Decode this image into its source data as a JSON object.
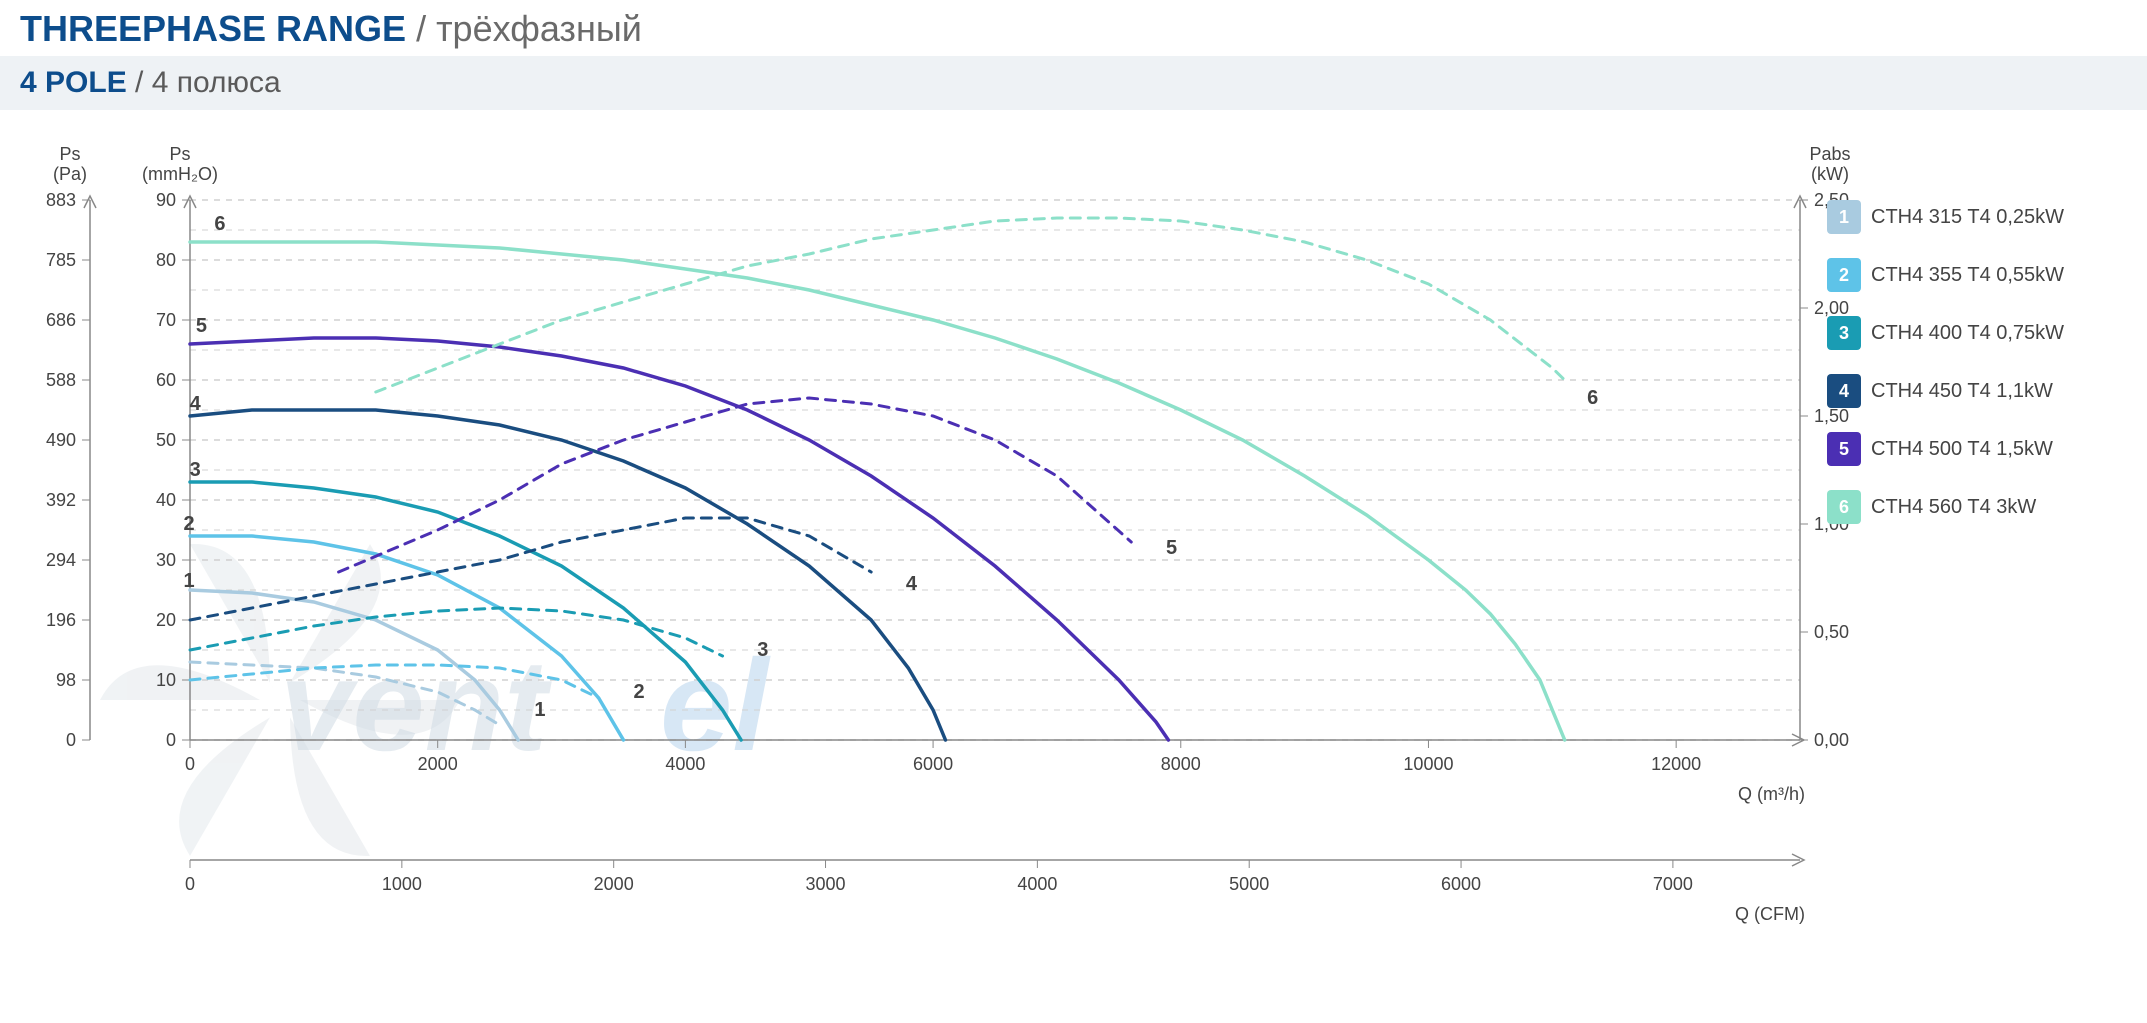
{
  "header": {
    "title_main": "THREEPHASE RANGE",
    "title_sub": " / трёхфазный",
    "subtitle_main": "4 POLE",
    "subtitle_sub": " / 4 полюса"
  },
  "chart": {
    "type": "line",
    "background_color": "#ffffff",
    "grid_color": "#d0d0d0",
    "axis_color": "#888888",
    "font_color": "#444444",
    "plot": {
      "x_domain": [
        0,
        13000
      ],
      "x_ticks": [
        0,
        2000,
        4000,
        6000,
        8000,
        10000,
        12000
      ],
      "x_label": "Q (m³/h)",
      "x2_label": "Q (CFM)",
      "x2_domain": [
        0,
        7600
      ],
      "x2_ticks": [
        0,
        1000,
        2000,
        3000,
        4000,
        5000,
        6000,
        7000
      ],
      "y1_left_pa": {
        "label": "Ps\n(Pa)",
        "ticks": [
          0,
          98,
          196,
          294,
          392,
          490,
          588,
          686,
          785,
          883
        ]
      },
      "y1_left_mm": {
        "label": "Ps\n(mmH₂O)",
        "ticks": [
          0,
          10,
          20,
          30,
          40,
          50,
          60,
          70,
          80,
          90
        ]
      },
      "y_right": {
        "label": "Pabs\n(kW)",
        "ticks": [
          "0,00",
          "0,50",
          "1,00",
          "1,50",
          "2,00",
          "2,50"
        ]
      }
    },
    "series": [
      {
        "id": "1",
        "label": "CTH4 315 T4 0,25kW",
        "color": "#a9cbe0",
        "solid": [
          [
            0,
            25
          ],
          [
            500,
            24.5
          ],
          [
            1000,
            23
          ],
          [
            1500,
            20
          ],
          [
            2000,
            15
          ],
          [
            2300,
            10
          ],
          [
            2500,
            5
          ],
          [
            2650,
            0
          ]
        ],
        "dashed": [
          [
            0,
            13
          ],
          [
            500,
            12.5
          ],
          [
            1000,
            12
          ],
          [
            1500,
            10.5
          ],
          [
            2000,
            8
          ],
          [
            2300,
            5
          ],
          [
            2500,
            2.5
          ]
        ],
        "label_solid_xy": [
          150,
          25.5
        ],
        "label_dashed_xy": [
          2700,
          5
        ]
      },
      {
        "id": "2",
        "label": "CTH4 355 T4 0,55kW",
        "color": "#5ec3e8",
        "solid": [
          [
            0,
            34
          ],
          [
            500,
            34
          ],
          [
            1000,
            33
          ],
          [
            1500,
            31
          ],
          [
            2000,
            27.5
          ],
          [
            2500,
            22
          ],
          [
            3000,
            14
          ],
          [
            3300,
            7
          ],
          [
            3500,
            0
          ]
        ],
        "dashed": [
          [
            0,
            10
          ],
          [
            500,
            11
          ],
          [
            1000,
            12
          ],
          [
            1500,
            12.5
          ],
          [
            2000,
            12.5
          ],
          [
            2500,
            12
          ],
          [
            3000,
            10
          ],
          [
            3300,
            7
          ]
        ],
        "label_solid_xy": [
          150,
          35
        ],
        "label_dashed_xy": [
          3500,
          8
        ]
      },
      {
        "id": "3",
        "label": "CTH4 400 T4 0,75kW",
        "color": "#1a9cb3",
        "solid": [
          [
            0,
            43
          ],
          [
            500,
            43
          ],
          [
            1000,
            42
          ],
          [
            1500,
            40.5
          ],
          [
            2000,
            38
          ],
          [
            2500,
            34
          ],
          [
            3000,
            29
          ],
          [
            3500,
            22
          ],
          [
            4000,
            13
          ],
          [
            4300,
            5
          ],
          [
            4450,
            0
          ]
        ],
        "dashed": [
          [
            0,
            15
          ],
          [
            500,
            17
          ],
          [
            1000,
            19
          ],
          [
            1500,
            20.5
          ],
          [
            2000,
            21.5
          ],
          [
            2500,
            22
          ],
          [
            3000,
            21.5
          ],
          [
            3500,
            20
          ],
          [
            4000,
            17
          ],
          [
            4300,
            14
          ]
        ],
        "label_solid_xy": [
          200,
          44
        ],
        "label_dashed_xy": [
          4500,
          15
        ]
      },
      {
        "id": "4",
        "label": "CTH4 450 T4 1,1kW",
        "color": "#1a4d80",
        "solid": [
          [
            0,
            54
          ],
          [
            500,
            55
          ],
          [
            1000,
            55
          ],
          [
            1500,
            55
          ],
          [
            2000,
            54
          ],
          [
            2500,
            52.5
          ],
          [
            3000,
            50
          ],
          [
            3500,
            46.5
          ],
          [
            4000,
            42
          ],
          [
            4500,
            36
          ],
          [
            5000,
            29
          ],
          [
            5500,
            20
          ],
          [
            5800,
            12
          ],
          [
            6000,
            5
          ],
          [
            6100,
            0
          ]
        ],
        "dashed": [
          [
            0,
            20
          ],
          [
            1000,
            24
          ],
          [
            2000,
            28
          ],
          [
            2500,
            30
          ],
          [
            3000,
            33
          ],
          [
            3500,
            35
          ],
          [
            4000,
            37
          ],
          [
            4500,
            37
          ],
          [
            5000,
            34
          ],
          [
            5500,
            28
          ]
        ],
        "label_solid_xy": [
          200,
          55
        ],
        "label_dashed_xy": [
          5700,
          26
        ]
      },
      {
        "id": "5",
        "label": "CTH4 500 T4 1,5kW",
        "color": "#4b2fb3",
        "solid": [
          [
            0,
            66
          ],
          [
            500,
            66.5
          ],
          [
            1000,
            67
          ],
          [
            1500,
            67
          ],
          [
            2000,
            66.5
          ],
          [
            2500,
            65.5
          ],
          [
            3000,
            64
          ],
          [
            3500,
            62
          ],
          [
            4000,
            59
          ],
          [
            4500,
            55
          ],
          [
            5000,
            50
          ],
          [
            5500,
            44
          ],
          [
            6000,
            37
          ],
          [
            6500,
            29
          ],
          [
            7000,
            20
          ],
          [
            7500,
            10
          ],
          [
            7800,
            3
          ],
          [
            7900,
            0
          ]
        ],
        "dashed": [
          [
            1200,
            28
          ],
          [
            2000,
            35
          ],
          [
            2500,
            40
          ],
          [
            3000,
            46
          ],
          [
            3500,
            50
          ],
          [
            4000,
            53
          ],
          [
            4500,
            56
          ],
          [
            5000,
            57
          ],
          [
            5500,
            56
          ],
          [
            6000,
            54
          ],
          [
            6500,
            50
          ],
          [
            7000,
            44
          ],
          [
            7600,
            33
          ]
        ],
        "label_solid_xy": [
          250,
          68
        ],
        "label_dashed_xy": [
          7800,
          32
        ]
      },
      {
        "id": "6",
        "label": "CTH4 560 T4 3kW",
        "color": "#8ce0c9",
        "solid": [
          [
            0,
            83
          ],
          [
            500,
            83
          ],
          [
            1000,
            83
          ],
          [
            1500,
            83
          ],
          [
            2000,
            82.5
          ],
          [
            2500,
            82
          ],
          [
            3000,
            81
          ],
          [
            3500,
            80
          ],
          [
            4000,
            78.5
          ],
          [
            4500,
            77
          ],
          [
            5000,
            75
          ],
          [
            5500,
            72.5
          ],
          [
            6000,
            70
          ],
          [
            6500,
            67
          ],
          [
            7000,
            63.5
          ],
          [
            7500,
            59.5
          ],
          [
            8000,
            55
          ],
          [
            8500,
            50
          ],
          [
            9000,
            44
          ],
          [
            9500,
            37.5
          ],
          [
            10000,
            30
          ],
          [
            10300,
            25
          ],
          [
            10500,
            21
          ],
          [
            10700,
            16
          ],
          [
            10900,
            10
          ],
          [
            11000,
            5
          ],
          [
            11100,
            0
          ]
        ],
        "dashed": [
          [
            1500,
            58
          ],
          [
            2000,
            62
          ],
          [
            2500,
            66
          ],
          [
            3000,
            70
          ],
          [
            3500,
            73
          ],
          [
            4000,
            76
          ],
          [
            4500,
            79
          ],
          [
            5000,
            81
          ],
          [
            5500,
            83.5
          ],
          [
            6000,
            85
          ],
          [
            6500,
            86.5
          ],
          [
            7000,
            87
          ],
          [
            7500,
            87
          ],
          [
            8000,
            86.5
          ],
          [
            8500,
            85
          ],
          [
            9000,
            83
          ],
          [
            9500,
            80
          ],
          [
            10000,
            76
          ],
          [
            10500,
            70
          ],
          [
            11000,
            62
          ],
          [
            11100,
            60
          ]
        ],
        "label_solid_xy": [
          400,
          85
        ],
        "label_dashed_xy": [
          11200,
          57
        ]
      }
    ],
    "line_width_solid": 3.5,
    "line_width_dashed": 3,
    "dash_pattern": "10,8"
  },
  "legend": {
    "items": [
      {
        "num": "1",
        "label": "CTH4 315 T4 0,25kW",
        "color": "#a9cbe0"
      },
      {
        "num": "2",
        "label": "CTH4 355 T4 0,55kW",
        "color": "#5ec3e8"
      },
      {
        "num": "3",
        "label": "CTH4 400 T4 0,75kW",
        "color": "#1a9cb3"
      },
      {
        "num": "4",
        "label": "CTH4 450 T4 1,1kW",
        "color": "#1a4d80"
      },
      {
        "num": "5",
        "label": "CTH4 500 T4 1,5kW",
        "color": "#4b2fb3"
      },
      {
        "num": "6",
        "label": "CTH4 560 T4 3kW",
        "color": "#8ce0c9"
      }
    ]
  },
  "watermark": {
    "text": "ventel"
  }
}
